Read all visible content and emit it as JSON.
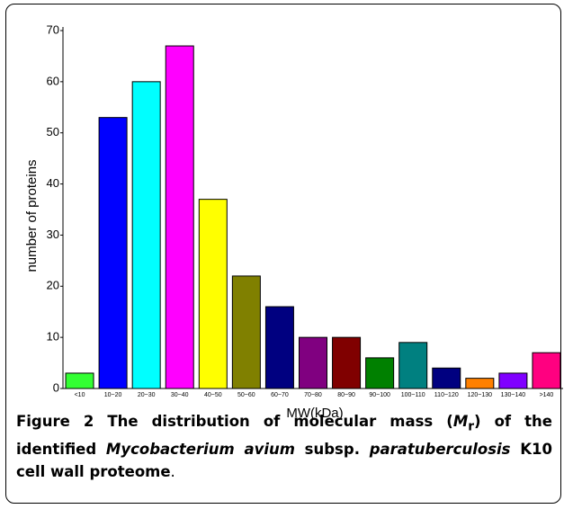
{
  "chart_data": {
    "type": "bar",
    "xlabel": "MW(kDa)",
    "ylabel": "number of proteins",
    "categories": [
      "<10",
      "10~20",
      "20~30",
      "30~40",
      "40~50",
      "50~60",
      "60~70",
      "70~80",
      "80~90",
      "90~100",
      "100~110",
      "110~120",
      "120~130",
      "130~140",
      ">140"
    ],
    "values": [
      3,
      53,
      60,
      67,
      37,
      22,
      16,
      10,
      10,
      6,
      9,
      4,
      2,
      3,
      7
    ],
    "colors": [
      "#33ff33",
      "#0000ff",
      "#00ffff",
      "#ff00ff",
      "#ffff00",
      "#808000",
      "#000080",
      "#800080",
      "#800000",
      "#008000",
      "#008080",
      "#000080",
      "#ff8000",
      "#8000ff",
      "#ff0080"
    ],
    "ylim": [
      0,
      70
    ],
    "yticks": [
      0,
      10,
      20,
      30,
      40,
      50,
      60,
      70
    ],
    "grid": false
  },
  "caption": {
    "label": "Figure 2",
    "parts": [
      " The distribution of molecular mass (",
      "M",
      "r",
      ") of the identified ",
      "Mycobacterium avium",
      " subsp. ",
      "paratuberculosis",
      " K10 cell wall proteome",
      "."
    ]
  }
}
